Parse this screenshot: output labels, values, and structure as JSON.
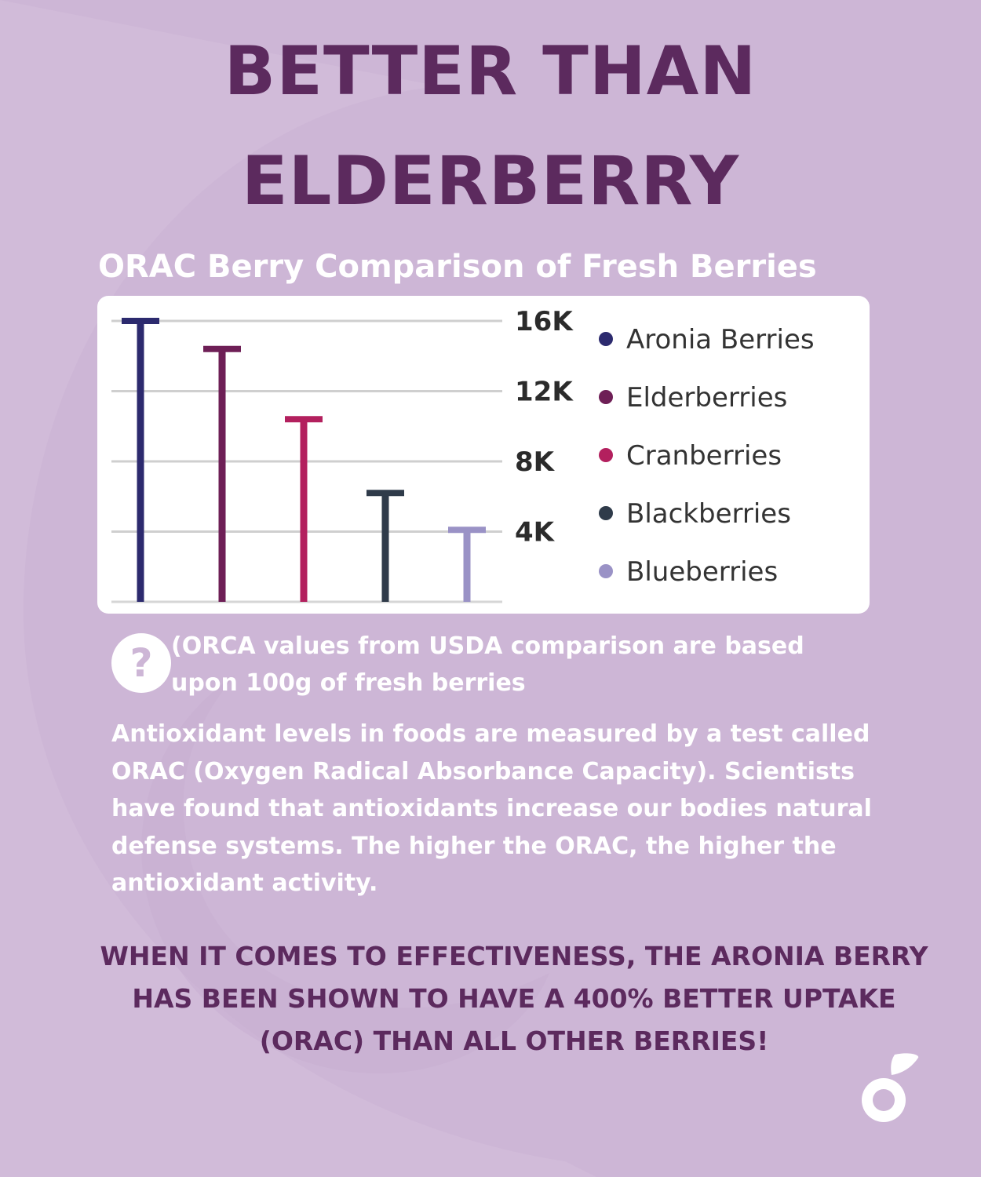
{
  "headline": {
    "line1": "BETTER THAN",
    "line2": "ELDERBERRY"
  },
  "chart_title": "ORAC Berry Comparison of Fresh Berries",
  "chart_data": {
    "type": "bar",
    "title": "ORAC Berry Comparison of Fresh Berries",
    "categories": [
      "Aronia Berries",
      "Elderberries",
      "Cranberries",
      "Blackberries",
      "Blueberries"
    ],
    "values": [
      16000,
      14400,
      10400,
      6200,
      4100
    ],
    "colors": [
      "#2c2a6e",
      "#6e1f56",
      "#b3205e",
      "#2f3b4a",
      "#9a92c6"
    ],
    "yticks": [
      {
        "value": 4000,
        "label": "4K"
      },
      {
        "value": 8000,
        "label": "8K"
      },
      {
        "value": 12000,
        "label": "12K"
      },
      {
        "value": 16000,
        "label": "16K"
      }
    ],
    "ylim": [
      0,
      16000
    ],
    "grid": true,
    "legend": "right",
    "xlabel": "",
    "ylabel": ""
  },
  "note": {
    "icon": "question-icon",
    "icon_glyph": "?",
    "text": "(ORCA values from USDA comparison are based upon 100g of fresh berries"
  },
  "body": "Antioxidant levels in foods are measured by a test called ORAC (Oxygen Radical Absorbance Capacity). Scientists have found that antioxidants increase our bodies natural defense systems. The higher the ORAC, the higher the antioxidant activity.",
  "callout": "WHEN IT COMES TO EFFECTIVENESS, THE ARONIA BERRY HAS BEEN SHOWN TO HAVE A 400% BETTER UPTAKE (ORAC) THAN ALL OTHER BERRIES!",
  "colors": {
    "background": "#cdb6d6",
    "headline": "#5c2a5e",
    "text": "#ffffff"
  },
  "logo": "berry-logo"
}
